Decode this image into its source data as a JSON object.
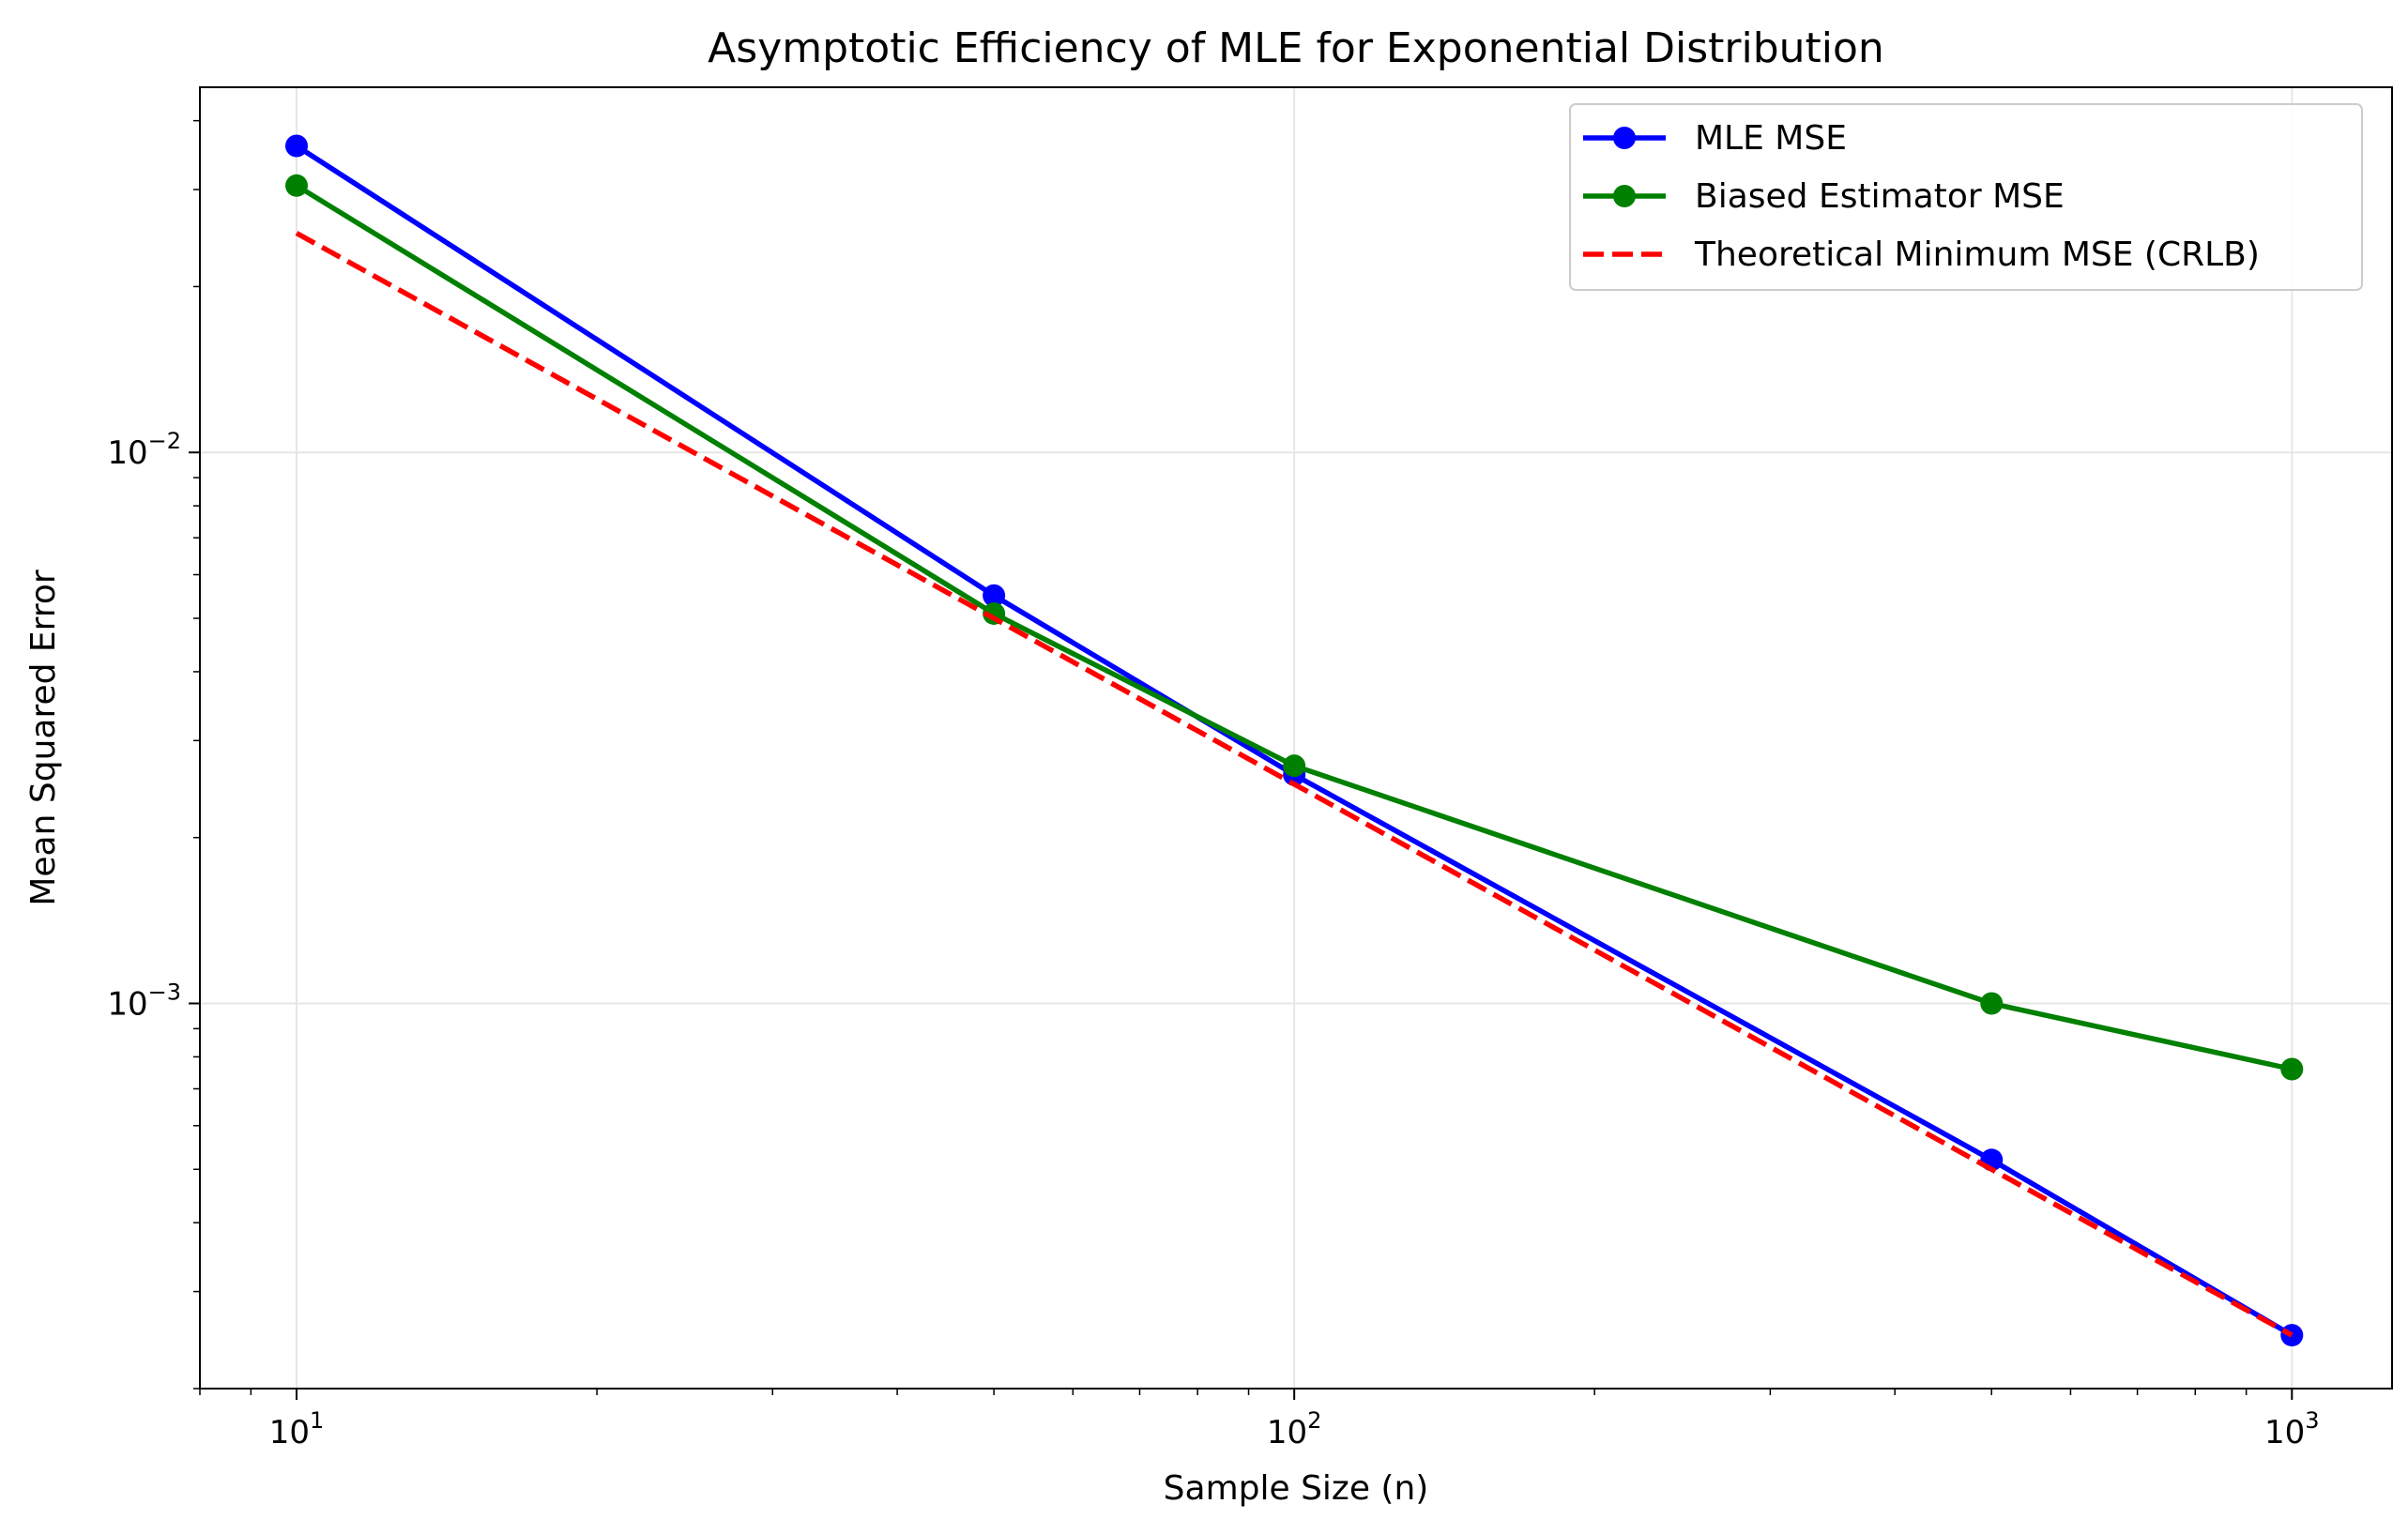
{
  "chart_data": {
    "type": "line",
    "title": "Asymptotic Efficiency of MLE for Exponential Distribution",
    "xlabel": "Sample Size (n)",
    "ylabel": "Mean Squared Error",
    "x_scale": "log",
    "y_scale": "log",
    "xlim": [
      8.0,
      1260.0
    ],
    "ylim": [
      0.0002,
      0.046
    ],
    "x": [
      10,
      50,
      100,
      500,
      1000
    ],
    "x_ticks": [
      {
        "value": 10,
        "base": "10",
        "exp": "1"
      },
      {
        "value": 100,
        "base": "10",
        "exp": "2"
      },
      {
        "value": 1000,
        "base": "10",
        "exp": "3"
      }
    ],
    "y_ticks": [
      {
        "value": 0.001,
        "base": "10",
        "exp": "−3"
      },
      {
        "value": 0.01,
        "base": "10",
        "exp": "−2"
      }
    ],
    "grid": true,
    "legend_position": "top-right",
    "series": [
      {
        "name": "MLE MSE",
        "color": "#0000ff",
        "style": "solid",
        "marker": "circle",
        "values": [
          0.036,
          0.0055,
          0.0026,
          0.00052,
          0.00025
        ]
      },
      {
        "name": "Biased Estimator MSE",
        "color": "#008000",
        "style": "solid",
        "marker": "circle",
        "values": [
          0.0305,
          0.0051,
          0.0027,
          0.001,
          0.00076
        ]
      },
      {
        "name": "Theoretical Minimum MSE (CRLB)",
        "color": "#ff0000",
        "style": "dashed",
        "marker": "none",
        "values": [
          0.025,
          0.005,
          0.0025,
          0.0005,
          0.00025
        ]
      }
    ]
  }
}
